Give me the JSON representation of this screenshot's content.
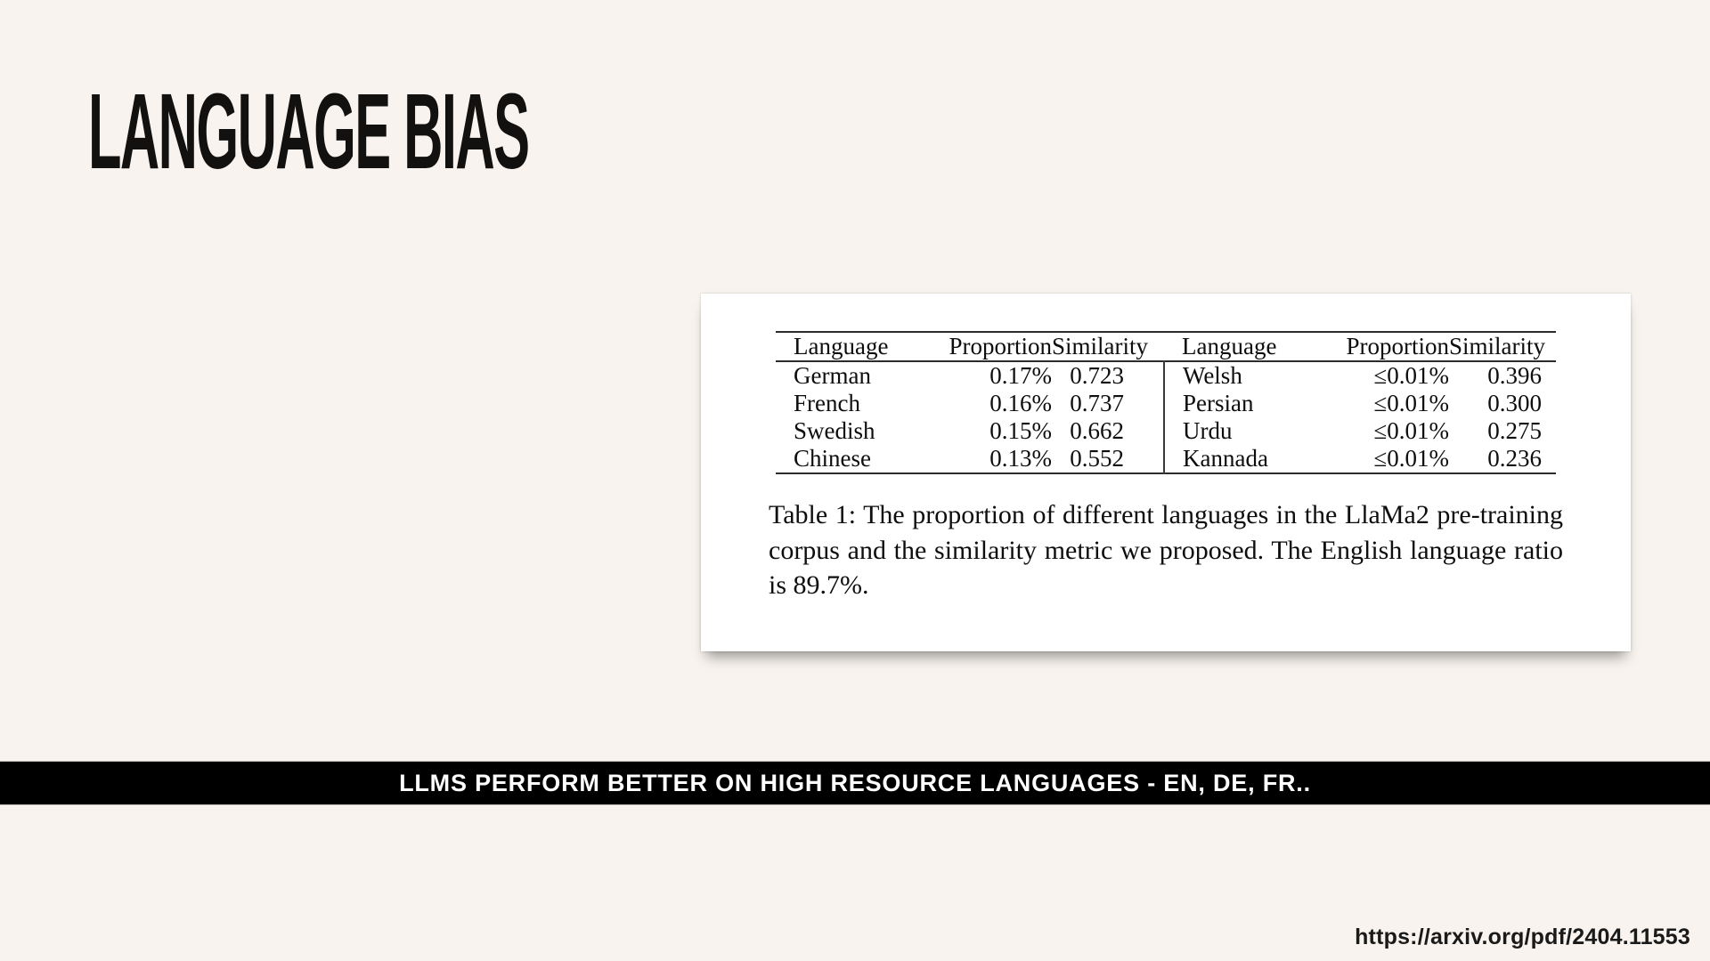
{
  "slide": {
    "title": "LANGUAGE BIAS",
    "banner": "LLMS PERFORM BETTER ON HIGH RESOURCE LANGUAGES - EN, DE, FR..",
    "source_url": "https://arxiv.org/pdf/2404.11553"
  },
  "figure": {
    "columns": [
      "Language",
      "Proportion",
      "Similarity",
      "Language",
      "Proportion",
      "Similarity"
    ],
    "rows": [
      [
        "German",
        "0.17%",
        "0.723",
        "Welsh",
        "≤0.01%",
        "0.396"
      ],
      [
        "French",
        "0.16%",
        "0.737",
        "Persian",
        "≤0.01%",
        "0.300"
      ],
      [
        "Swedish",
        "0.15%",
        "0.662",
        "Urdu",
        "≤0.01%",
        "0.275"
      ],
      [
        "Chinese",
        "0.13%",
        "0.552",
        "Kannada",
        "≤0.01%",
        "0.236"
      ]
    ],
    "caption": "Table 1: The proportion of different languages in the LlaMa2 pre-training corpus and the similarity metric we proposed. The English language ratio is 89.7%."
  },
  "chart_data": {
    "type": "table",
    "title": "Table 1: Proportion of languages in the LlaMa2 pre-training corpus and similarity metric",
    "columns": [
      "Language",
      "Proportion",
      "Similarity"
    ],
    "records": [
      {
        "language": "German",
        "proportion": "0.17%",
        "similarity": 0.723
      },
      {
        "language": "French",
        "proportion": "0.16%",
        "similarity": 0.737
      },
      {
        "language": "Swedish",
        "proportion": "0.15%",
        "similarity": 0.662
      },
      {
        "language": "Chinese",
        "proportion": "0.13%",
        "similarity": 0.552
      },
      {
        "language": "Welsh",
        "proportion": "≤0.01%",
        "similarity": 0.396
      },
      {
        "language": "Persian",
        "proportion": "≤0.01%",
        "similarity": 0.3
      },
      {
        "language": "Urdu",
        "proportion": "≤0.01%",
        "similarity": 0.275
      },
      {
        "language": "Kannada",
        "proportion": "≤0.01%",
        "similarity": 0.236
      }
    ],
    "note": "English language ratio is 89.7%"
  },
  "colors": {
    "background": "#f8f3ee",
    "card": "#ffffff",
    "banner_bg": "#000000",
    "banner_text": "#ffffff",
    "text": "#111111"
  }
}
